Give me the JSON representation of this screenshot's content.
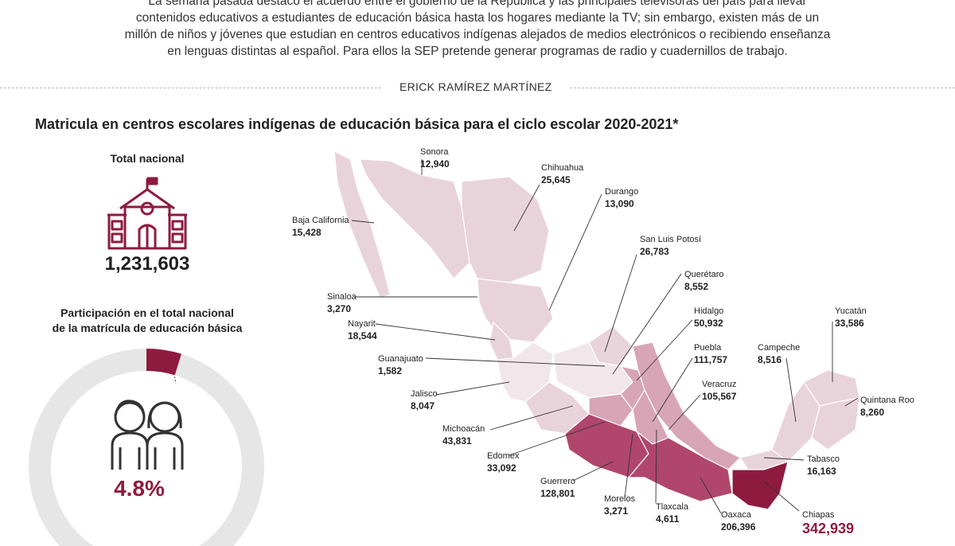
{
  "intro": {
    "line1": "La semana pasada destacó el acuerdo entre el gobierno de la República y las principales televisoras del país para llevar",
    "line2": "contenidos educativos a estudiantes de educación básica hasta los hogares mediante la TV; sin embargo, existen más de un",
    "line3": "millón de niños y jóvenes que estudian en centros educativos indígenas alejados de medios electrónicos o recibiendo enseñanza",
    "line4": "en lenguas distintas al español. Para ellos la SEP pretende generar programas de radio y cuadernillos de trabajo."
  },
  "author": "ERICK RAMÍREZ MARTÍNEZ",
  "colors": {
    "accent": "#8e1b3f",
    "dark": "#b0466c",
    "mid": "#d7a5b6",
    "light": "#e9d3da",
    "none": "#ffffff",
    "ring": "#e6e6e6"
  },
  "chart_data": {
    "type": "map",
    "title": "Matricula en centros escolares indígenas de educación básica para el ciclo escolar 2020-2021*",
    "total_label": "Total nacional",
    "total_value": "1,231,603",
    "share_label_1": "Participación en el total nacional",
    "share_label_2": "de la matrícula de educación básica",
    "share_pct": 4.8,
    "share_text": "4.8%",
    "states": [
      {
        "name": "Sonora",
        "value": 12940,
        "label": "12,940"
      },
      {
        "name": "Chihuahua",
        "value": 25645,
        "label": "25,645"
      },
      {
        "name": "Durango",
        "value": 13090,
        "label": "13,090"
      },
      {
        "name": "Baja California",
        "value": 15428,
        "label": "15,428"
      },
      {
        "name": "San Luis Potosí",
        "value": 26783,
        "label": "26,783"
      },
      {
        "name": "Querétaro",
        "value": 8552,
        "label": "8,552"
      },
      {
        "name": "Sinaloa",
        "value": 3270,
        "label": "3,270"
      },
      {
        "name": "Hidalgo",
        "value": 50932,
        "label": "50,932"
      },
      {
        "name": "Nayarit",
        "value": 18544,
        "label": "18,544"
      },
      {
        "name": "Yucatán",
        "value": 33586,
        "label": "33,586"
      },
      {
        "name": "Puebla",
        "value": 111757,
        "label": "111,757"
      },
      {
        "name": "Campeche",
        "value": 8516,
        "label": "8,516"
      },
      {
        "name": "Guanajuato",
        "value": 1582,
        "label": "1,582"
      },
      {
        "name": "Veracruz",
        "value": 105567,
        "label": "105,567"
      },
      {
        "name": "Jalisco",
        "value": 8047,
        "label": "8,047"
      },
      {
        "name": "Quintana Roo",
        "value": 8260,
        "label": "8,260"
      },
      {
        "name": "Michoacán",
        "value": 43831,
        "label": "43,831"
      },
      {
        "name": "Edomex",
        "value": 33092,
        "label": "33,092"
      },
      {
        "name": "Tabasco",
        "value": 16163,
        "label": "16,163"
      },
      {
        "name": "Guerrero",
        "value": 128801,
        "label": "128,801"
      },
      {
        "name": "Morelos",
        "value": 3271,
        "label": "3,271"
      },
      {
        "name": "Tlaxcala",
        "value": 4611,
        "label": "4,611"
      },
      {
        "name": "Oaxaca",
        "value": 206396,
        "label": "206,396"
      },
      {
        "name": "Chiapas",
        "value": 342939,
        "label": "342,939"
      }
    ]
  }
}
